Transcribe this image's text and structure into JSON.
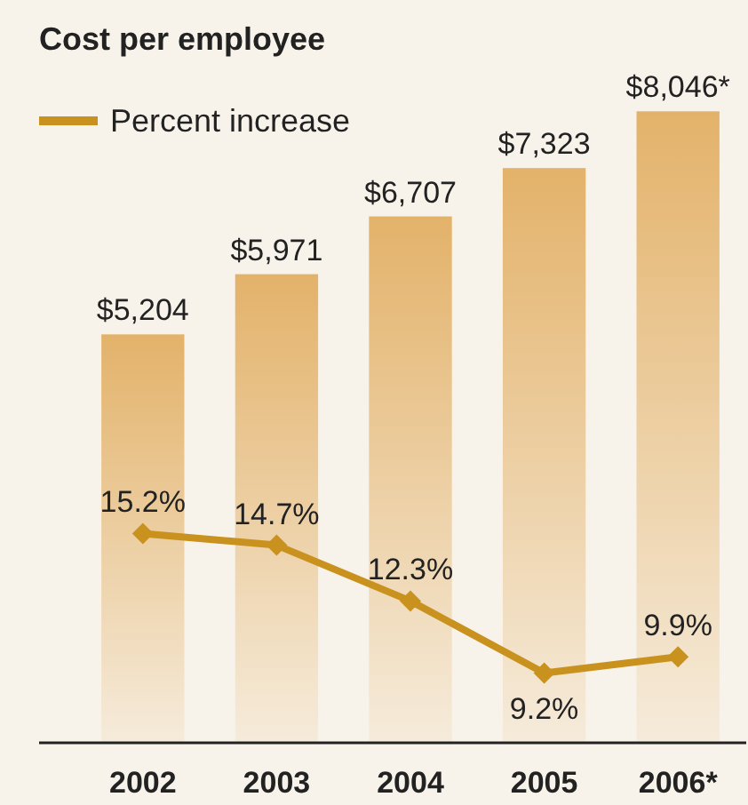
{
  "chart_data": {
    "type": "bar",
    "title": "Cost per employee",
    "categories": [
      "2002",
      "2003",
      "2004",
      "2005",
      "2006*"
    ],
    "data_labels": true,
    "legend": "top left",
    "series": [
      {
        "color": "#e3b26a",
        "values": [
          5204,
          5971,
          6707,
          7323,
          8046
        ],
        "value_labels": [
          "$5,204",
          "$5,971",
          "$6,707",
          "$7,323",
          "$8,046*"
        ]
      },
      {
        "type": "line",
        "name": "Percent increase",
        "axis": "y2",
        "color": "#c9921f",
        "marker": "diamond",
        "values": [
          15.2,
          14.7,
          12.3,
          9.2,
          9.9
        ],
        "value_labels": [
          "15.2%",
          "14.7%",
          "12.3%",
          "9.2%",
          "9.9%"
        ]
      }
    ]
  }
}
